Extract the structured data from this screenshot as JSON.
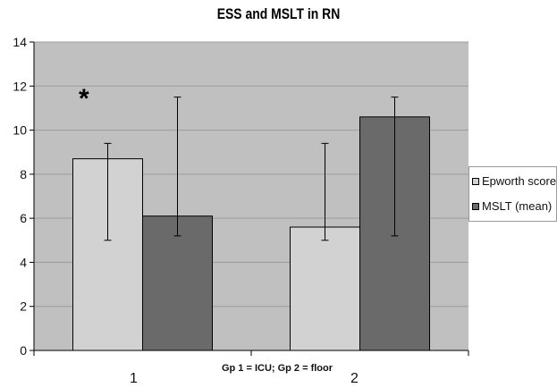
{
  "chart_data": {
    "type": "bar",
    "title": "ESS and MSLT in RN",
    "xlabel": "Gp 1 = ICU; Gp 2 = floor",
    "ylabel": "",
    "categories": [
      "1",
      "2"
    ],
    "ylim": [
      0,
      14
    ],
    "yticks": [
      "0",
      "2",
      "4",
      "6",
      "8",
      "10",
      "12",
      "14"
    ],
    "grid": true,
    "legend_position": "right",
    "series": [
      {
        "name": "Epworth score",
        "values": [
          8.7,
          5.6
        ],
        "error_low": [
          5.0,
          5.0
        ],
        "error_high": [
          9.4,
          9.4
        ],
        "color": "#d2d2d2"
      },
      {
        "name": "MSLT (mean)",
        "values": [
          6.1,
          10.6
        ],
        "error_low": [
          5.2,
          5.2
        ],
        "error_high": [
          11.5,
          11.5
        ],
        "color": "#6a6a6a"
      }
    ],
    "annotations": [
      {
        "text": "*",
        "category": "1"
      }
    ],
    "colors": {
      "plot_background": "#c0c0c0",
      "grid": "#9c9c9c",
      "axis": "#000000"
    }
  }
}
